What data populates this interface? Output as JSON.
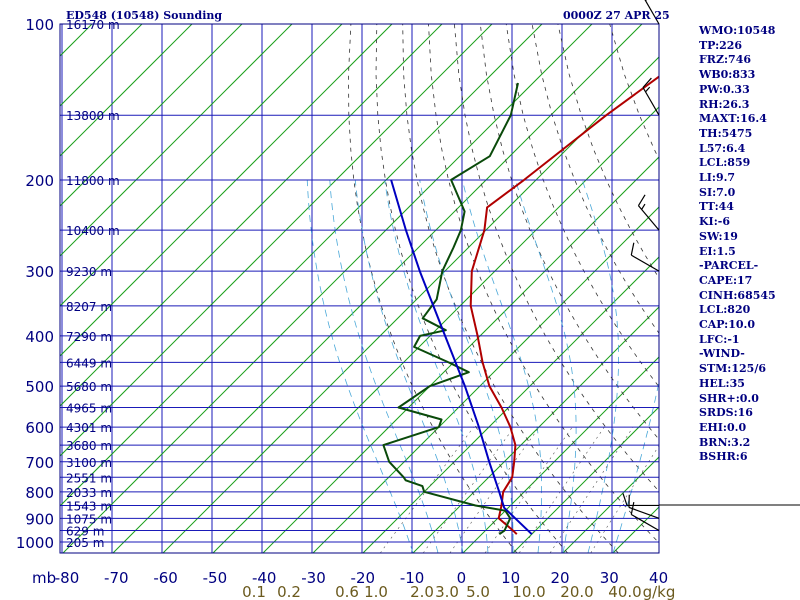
{
  "header": {
    "station": "ED548 (10548) Sounding",
    "time": "0000Z 27 APR 25"
  },
  "indices": [
    "WMO:10548",
    "TP:226",
    "FRZ:746",
    "WB0:833",
    "PW:0.33",
    "RH:26.3",
    "MAXT:16.4",
    "TH:5475",
    "L57:6.4",
    "LCL:859",
    "LI:9.7",
    "SI:7.0",
    "TT:44",
    "KI:-6",
    "SW:19",
    "EI:1.5",
    "-PARCEL-",
    "CAPE:17",
    "CINH:68545",
    "LCL:820",
    "CAP:10.0",
    "LFC:-1",
    "-WIND-",
    "STM:125/6",
    "HEL:35",
    "SHR+:0.0",
    "SRDS:16",
    "EHI:0.0",
    "BRN:3.2",
    "BSHR:6"
  ],
  "chart_data": {
    "type": "line",
    "title": "ED548 (10548) Sounding",
    "pressure_levels": [
      100,
      200,
      300,
      400,
      500,
      600,
      700,
      800,
      900,
      1000
    ],
    "pressure_unit_label": "mb",
    "temperature_ticks": [
      -80,
      -70,
      -60,
      -50,
      -40,
      -30,
      -20,
      -10,
      0,
      10,
      20,
      30,
      40
    ],
    "mixing_ratio_labels": [
      "0.1",
      "0.2",
      "0.6",
      "1.0",
      "2.0",
      "3.0",
      "5.0",
      "10.0",
      "20.0",
      "40.0",
      "g/kg"
    ],
    "height_labels": [
      {
        "p": 100,
        "text": "16170 m"
      },
      {
        "p": 150,
        "text": "13800 m"
      },
      {
        "p": 200,
        "text": "11800 m"
      },
      {
        "p": 250,
        "text": "10400 m"
      },
      {
        "p": 300,
        "text": "9230 m"
      },
      {
        "p": 350,
        "text": "8207 m"
      },
      {
        "p": 400,
        "text": "7290 m"
      },
      {
        "p": 450,
        "text": "6449 m"
      },
      {
        "p": 500,
        "text": "5680 m"
      },
      {
        "p": 550,
        "text": "4965 m"
      },
      {
        "p": 600,
        "text": "4301 m"
      },
      {
        "p": 650,
        "text": "3680 m"
      },
      {
        "p": 700,
        "text": "3100 m"
      },
      {
        "p": 750,
        "text": "2551 m"
      },
      {
        "p": 800,
        "text": "2033 m"
      },
      {
        "p": 850,
        "text": "1543 m"
      },
      {
        "p": 900,
        "text": "1075 m"
      },
      {
        "p": 950,
        "text": "629 m"
      },
      {
        "p": 1000,
        "text": "205 m"
      }
    ],
    "series": [
      {
        "color": "#b00000",
        "points": [
          {
            "p": 966,
            "t": 7.0
          },
          {
            "p": 950,
            "t": 5.5
          },
          {
            "p": 900,
            "t": 0.2
          },
          {
            "p": 850,
            "t": -1.8
          },
          {
            "p": 800,
            "t": -4.2
          },
          {
            "p": 750,
            "t": -5.3
          },
          {
            "p": 700,
            "t": -8.0
          },
          {
            "p": 650,
            "t": -11.1
          },
          {
            "p": 600,
            "t": -15.7
          },
          {
            "p": 550,
            "t": -21.4
          },
          {
            "p": 500,
            "t": -28.1
          },
          {
            "p": 450,
            "t": -34.2
          },
          {
            "p": 400,
            "t": -40.5
          },
          {
            "p": 350,
            "t": -47.9
          },
          {
            "p": 300,
            "t": -54.6
          },
          {
            "p": 250,
            "t": -60.3
          },
          {
            "p": 226,
            "t": -64.3
          },
          {
            "p": 200,
            "t": -62.4
          },
          {
            "p": 150,
            "t": -58.9
          },
          {
            "p": 125,
            "t": -55.9
          },
          {
            "p": 100,
            "t": -56.0
          }
        ]
      },
      {
        "color": "#0a4a0a",
        "points": [
          {
            "p": 966,
            "t": 3.5
          },
          {
            "p": 950,
            "t": 3.8
          },
          {
            "p": 900,
            "t": 2.5
          },
          {
            "p": 870,
            "t": 0.0
          },
          {
            "p": 850,
            "t": -7.0
          },
          {
            "p": 800,
            "t": -20.0
          },
          {
            "p": 780,
            "t": -21.5
          },
          {
            "p": 760,
            "t": -26.0
          },
          {
            "p": 750,
            "t": -27.0
          },
          {
            "p": 700,
            "t": -33.0
          },
          {
            "p": 650,
            "t": -37.5
          },
          {
            "p": 600,
            "t": -30.0
          },
          {
            "p": 580,
            "t": -31.0
          },
          {
            "p": 550,
            "t": -42.0
          },
          {
            "p": 500,
            "t": -40.0
          },
          {
            "p": 470,
            "t": -35.0
          },
          {
            "p": 450,
            "t": -41.0
          },
          {
            "p": 420,
            "t": -51.0
          },
          {
            "p": 400,
            "t": -52.0
          },
          {
            "p": 390,
            "t": -48.0
          },
          {
            "p": 370,
            "t": -55.0
          },
          {
            "p": 340,
            "t": -56.0
          },
          {
            "p": 300,
            "t": -60.5
          },
          {
            "p": 270,
            "t": -63.0
          },
          {
            "p": 250,
            "t": -65.0
          },
          {
            "p": 230,
            "t": -68.0
          },
          {
            "p": 200,
            "t": -77.0
          },
          {
            "p": 180,
            "t": -74.0
          },
          {
            "p": 150,
            "t": -78.0
          },
          {
            "p": 130,
            "t": -83.0
          }
        ]
      },
      {
        "color": "#0000c0",
        "points": [
          {
            "p": 966,
            "t": 10.0
          },
          {
            "p": 900,
            "t": 3.5
          },
          {
            "p": 859,
            "t": -0.8
          },
          {
            "p": 800,
            "t": -5.0
          },
          {
            "p": 700,
            "t": -13.0
          },
          {
            "p": 600,
            "t": -22.0
          },
          {
            "p": 500,
            "t": -33.0
          },
          {
            "p": 400,
            "t": -47.0
          },
          {
            "p": 300,
            "t": -65.0
          },
          {
            "p": 250,
            "t": -76.0
          },
          {
            "p": 200,
            "t": -89.0
          }
        ]
      }
    ],
    "wind_barbs": [
      {
        "p": 100,
        "dir": 330,
        "speed": 20
      },
      {
        "p": 150,
        "dir": 330,
        "speed": 15
      },
      {
        "p": 250,
        "dir": 320,
        "speed": 15
      },
      {
        "p": 300,
        "dir": 300,
        "speed": 10
      },
      {
        "p": 850,
        "dir": 270,
        "speed": 10
      },
      {
        "p": 900,
        "dir": 290,
        "speed": 10
      },
      {
        "p": 950,
        "dir": 300,
        "speed": 10
      }
    ],
    "grid": true
  }
}
